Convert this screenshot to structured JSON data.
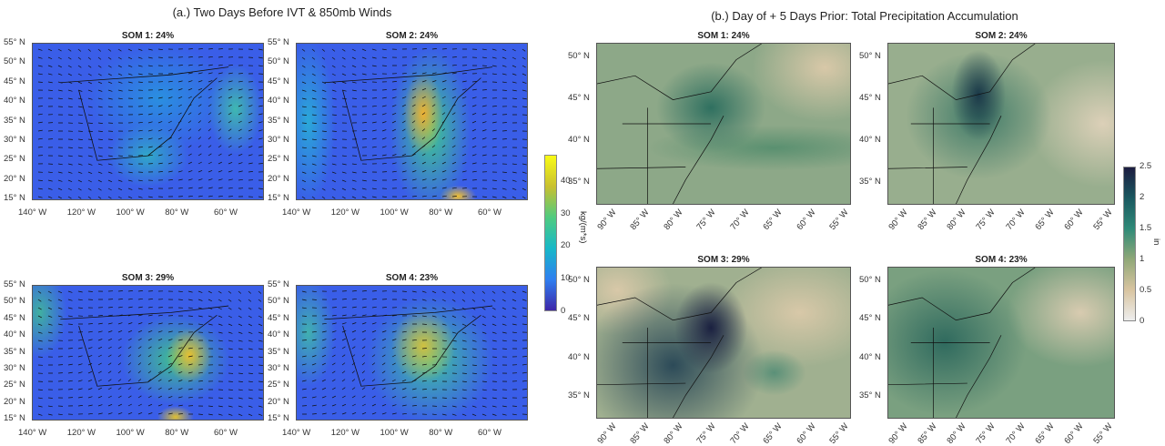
{
  "panel_a": {
    "title": "(a.) Two Days Before IVT & 850mb Winds",
    "maps": [
      {
        "title": "SOM 1: 24%"
      },
      {
        "title": "SOM 2: 24%"
      },
      {
        "title": "SOM 3: 29%"
      },
      {
        "title": "SOM 4: 23%"
      }
    ],
    "lat_ticks": [
      "55° N",
      "50° N",
      "45° N",
      "40° N",
      "35° N",
      "30° N",
      "25° N",
      "20° N",
      "15° N"
    ],
    "lon_ticks": [
      "140° W",
      "120° W",
      "100° W",
      "80° W",
      "60° W"
    ],
    "colorbar": {
      "ticks": [
        "0",
        "10",
        "20",
        "30",
        "40"
      ],
      "unit": "kg/(m*s)",
      "range": [
        0,
        48
      ],
      "colormap": "parula"
    }
  },
  "panel_b": {
    "title": "(b.) Day of + 5 Days Prior: Total Precipitation Accumulation",
    "maps": [
      {
        "title": "SOM 1: 24%"
      },
      {
        "title": "SOM 2: 24%"
      },
      {
        "title": "SOM 3: 29%"
      },
      {
        "title": "SOM 4: 23%"
      }
    ],
    "lat_ticks": [
      "50° N",
      "45° N",
      "40° N",
      "35° N"
    ],
    "lon_ticks": [
      "90° W",
      "85° W",
      "80° W",
      "75° W",
      "70° W",
      "65° W",
      "60° W",
      "55° W"
    ],
    "colorbar": {
      "ticks": [
        "0",
        "0.5",
        "1",
        "1.5",
        "2",
        "2.5"
      ],
      "unit": "in",
      "range": [
        0,
        2.5
      ],
      "colormap": "tan-green-navy"
    }
  }
}
